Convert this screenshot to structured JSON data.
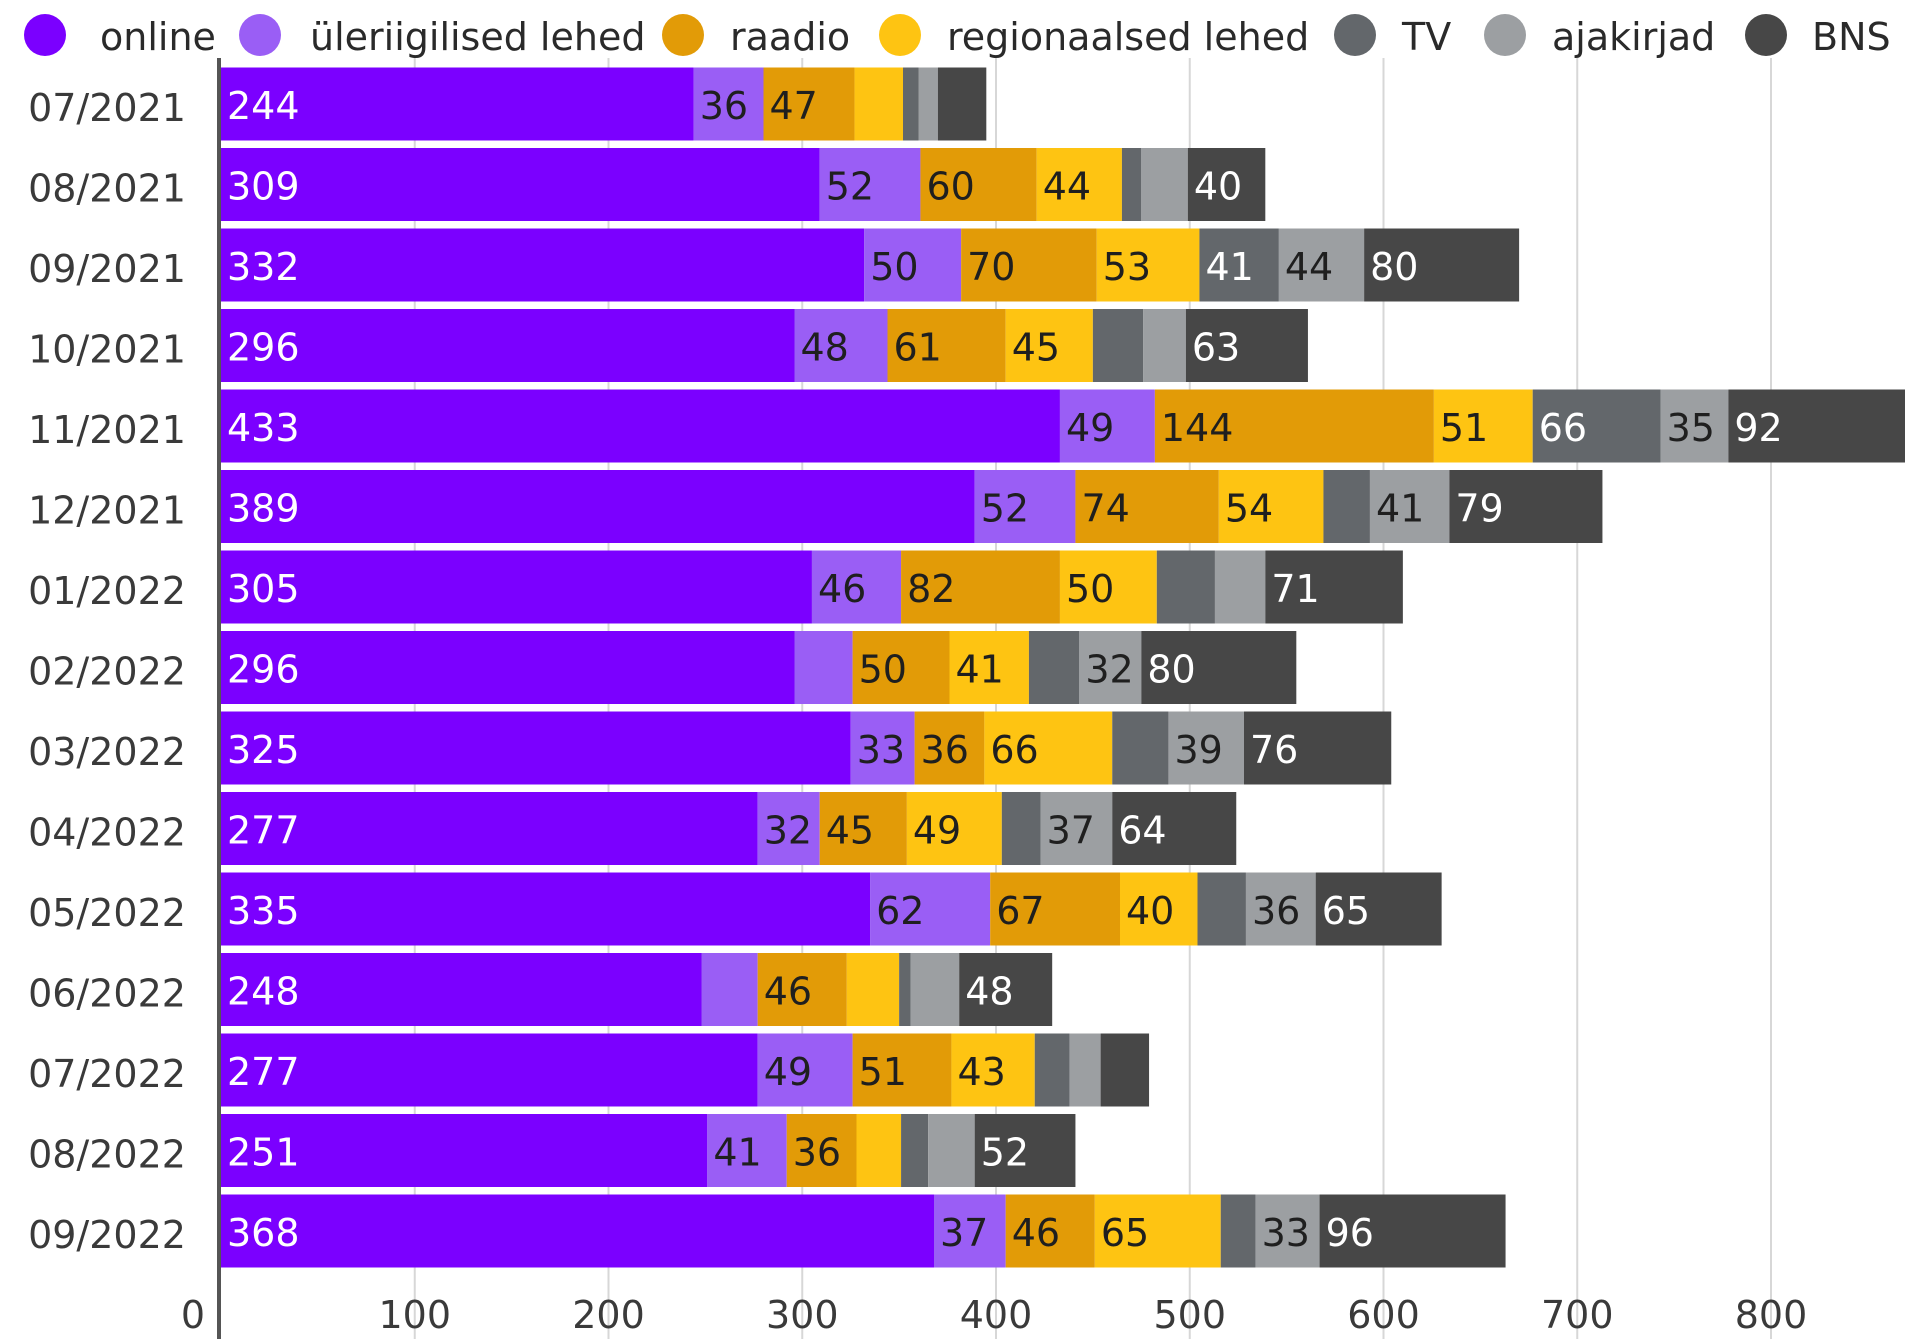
{
  "chart_data": {
    "type": "bar",
    "orientation": "horizontal",
    "stacked": true,
    "title": "",
    "xlabel": "",
    "ylabel": "",
    "xlim": [
      0,
      880
    ],
    "x_ticks": [
      0,
      100,
      200,
      300,
      400,
      500,
      600,
      700,
      800
    ],
    "grid": "vertical",
    "legend_position": "top",
    "categories": [
      "07/2021",
      "08/2021",
      "09/2021",
      "10/2021",
      "11/2021",
      "12/2021",
      "01/2022",
      "02/2022",
      "03/2022",
      "04/2022",
      "05/2022",
      "06/2022",
      "07/2022",
      "08/2022",
      "09/2022"
    ],
    "series": [
      {
        "name": "online",
        "color": "#7b00ff",
        "label_color": "#ffffff",
        "values": [
          244,
          309,
          332,
          296,
          433,
          389,
          305,
          296,
          325,
          277,
          335,
          248,
          277,
          251,
          368
        ],
        "labels": [
          "244",
          "309",
          "332",
          "296",
          "433",
          "389",
          "305",
          "296",
          "325",
          "277",
          "335",
          "248",
          "277",
          "251",
          "368"
        ]
      },
      {
        "name": "üleriigilised lehed",
        "color": "#9a5ef5",
        "label_color": "#1f1f1f",
        "values": [
          36,
          52,
          50,
          48,
          49,
          52,
          46,
          30,
          33,
          32,
          62,
          29,
          49,
          41,
          37
        ],
        "labels": [
          "36",
          "52",
          "50",
          "48",
          "49",
          "52",
          "46",
          "",
          "33",
          "32",
          "62",
          "",
          "49",
          "41",
          "37"
        ]
      },
      {
        "name": "raadio",
        "color": "#e29b07",
        "label_color": "#1f1f1f",
        "values": [
          47,
          60,
          70,
          61,
          144,
          74,
          82,
          50,
          36,
          45,
          67,
          46,
          51,
          36,
          46
        ],
        "labels": [
          "47",
          "60",
          "70",
          "61",
          "144",
          "74",
          "82",
          "50",
          "36",
          "45",
          "67",
          "46",
          "51",
          "36",
          "46"
        ]
      },
      {
        "name": "regionaalsed lehed",
        "color": "#fec412",
        "label_color": "#1f1f1f",
        "values": [
          25,
          44,
          53,
          45,
          51,
          54,
          50,
          41,
          66,
          49,
          40,
          27,
          43,
          23,
          65
        ],
        "labels": [
          "",
          "44",
          "53",
          "45",
          "51",
          "54",
          "50",
          "41",
          "66",
          "49",
          "40",
          "",
          "43",
          "",
          "65"
        ]
      },
      {
        "name": "TV",
        "color": "#63676b",
        "label_color": "#ffffff",
        "values": [
          8,
          10,
          41,
          26,
          66,
          24,
          30,
          26,
          29,
          20,
          25,
          6,
          18,
          14,
          18
        ],
        "labels": [
          "",
          "",
          "41",
          "",
          "66",
          "",
          "",
          "",
          "",
          "",
          "",
          "",
          "",
          "",
          ""
        ]
      },
      {
        "name": "ajakirjad",
        "color": "#9c9fa2",
        "label_color": "#1f1f1f",
        "values": [
          10,
          24,
          44,
          22,
          35,
          41,
          26,
          32,
          39,
          37,
          36,
          25,
          16,
          24,
          33
        ],
        "labels": [
          "",
          "",
          "44",
          "",
          "35",
          "41",
          "",
          "32",
          "39",
          "37",
          "36",
          "",
          "",
          "",
          "33"
        ]
      },
      {
        "name": "BNS",
        "color": "#474747",
        "label_color": "#ffffff",
        "values": [
          25,
          40,
          80,
          63,
          92,
          79,
          71,
          80,
          76,
          64,
          65,
          48,
          25,
          52,
          96
        ],
        "labels": [
          "",
          "40",
          "80",
          "63",
          "92",
          "79",
          "71",
          "80",
          "76",
          "64",
          "65",
          "48",
          "",
          "52",
          "96"
        ]
      }
    ]
  }
}
